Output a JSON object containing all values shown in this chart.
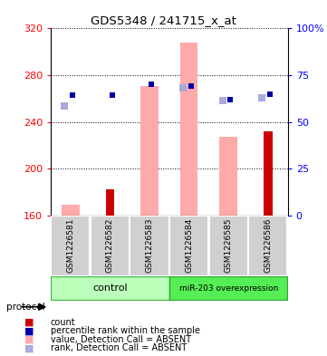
{
  "title": "GDS5348 / 241715_x_at",
  "samples": [
    "GSM1226581",
    "GSM1226582",
    "GSM1226583",
    "GSM1226584",
    "GSM1226585",
    "GSM1226586"
  ],
  "red_bar_values": [
    160,
    182,
    160,
    160,
    160,
    232
  ],
  "pink_bar_values": [
    169,
    160,
    271,
    308,
    227,
    160
  ],
  "blue_square_values": [
    263,
    263,
    272,
    271,
    259,
    264
  ],
  "light_blue_square_values": [
    254,
    0,
    0,
    269,
    258,
    261
  ],
  "ylim_left": [
    160,
    320
  ],
  "ylim_right": [
    0,
    100
  ],
  "yticks_left": [
    160,
    200,
    240,
    280,
    320
  ],
  "yticks_right": [
    0,
    25,
    50,
    75,
    100
  ],
  "background_color": "#ffffff",
  "red_color": "#cc0000",
  "pink_color": "#ffaaaa",
  "blue_color": "#0000aa",
  "light_blue_color": "#aaaadd",
  "control_color": "#bbffbb",
  "mir_color": "#55ee55",
  "sample_box_color": "#d0d0d0",
  "legend_items": [
    {
      "color": "#cc0000",
      "label": "count"
    },
    {
      "color": "#0000aa",
      "label": "percentile rank within the sample"
    },
    {
      "color": "#ffaaaa",
      "label": "value, Detection Call = ABSENT"
    },
    {
      "color": "#aaaadd",
      "label": "rank, Detection Call = ABSENT"
    }
  ]
}
